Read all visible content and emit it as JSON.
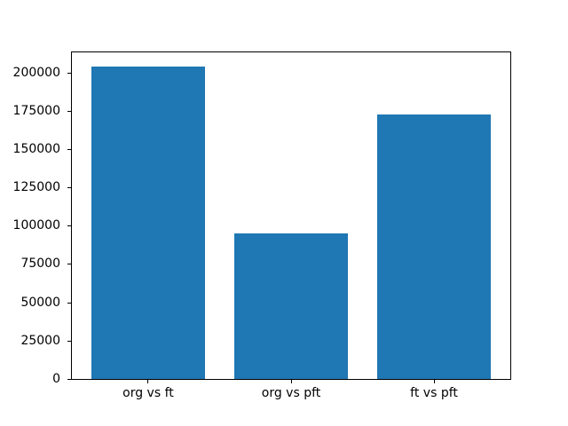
{
  "figure": {
    "background": "#ffffff",
    "text_color": "#000000"
  },
  "chart_data": {
    "type": "bar",
    "categories": [
      "org vs ft",
      "org vs pft",
      "ft vs pft"
    ],
    "values": [
      204000,
      95000,
      173000
    ],
    "title": "",
    "xlabel": "",
    "ylabel": "",
    "xlim": [
      -0.54,
      2.54
    ],
    "ylim": [
      0,
      214200
    ],
    "yticks": [
      0,
      25000,
      50000,
      75000,
      100000,
      125000,
      150000,
      175000,
      200000
    ],
    "bar_width": 0.8,
    "bar_color": "#1f77b4",
    "grid": false,
    "legend": "none"
  }
}
